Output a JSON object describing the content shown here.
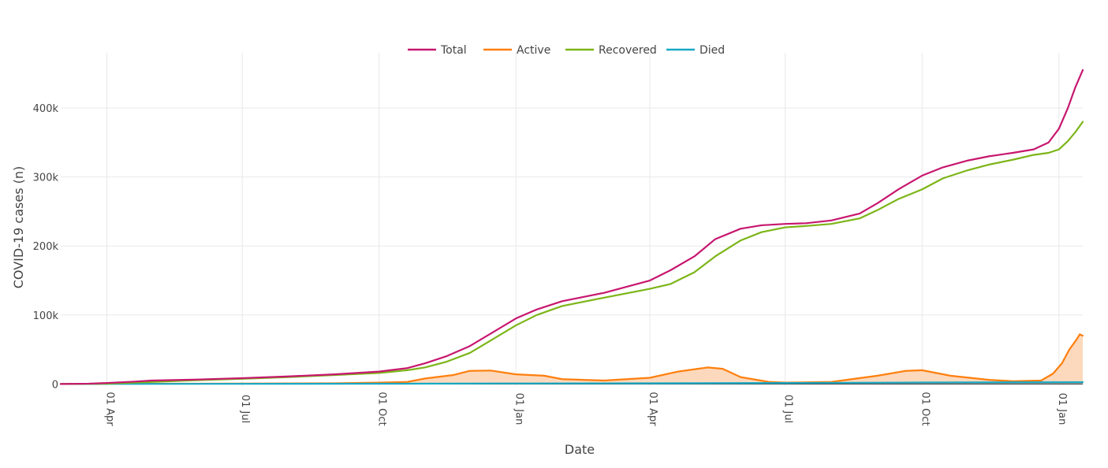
{
  "chart_data": {
    "type": "line",
    "title": "",
    "xlabel": "Date",
    "ylabel": "COVID-19 cases (n)",
    "x_ticks": [
      {
        "label": "01 Apr",
        "date": "2020-04-01"
      },
      {
        "label": "01 Jul",
        "date": "2020-07-01"
      },
      {
        "label": "01 Oct",
        "date": "2020-10-01"
      },
      {
        "label": "01 Jan",
        "date": "2021-01-01"
      },
      {
        "label": "01 Apr",
        "date": "2021-04-01"
      },
      {
        "label": "01 Jul",
        "date": "2021-07-01"
      },
      {
        "label": "01 Oct",
        "date": "2021-10-01"
      },
      {
        "label": "01 Jan",
        "date": "2022-01-01"
      }
    ],
    "y_ticks": [
      {
        "label": "0",
        "value": 0
      },
      {
        "label": "100k",
        "value": 100000
      },
      {
        "label": "200k",
        "value": 200000
      },
      {
        "label": "300k",
        "value": 300000
      },
      {
        "label": "400k",
        "value": 400000
      }
    ],
    "xlim": [
      "2020-03-01",
      "2022-01-17"
    ],
    "ylim": [
      -3000,
      480000
    ],
    "grid": true,
    "legend_position": "top-center",
    "series": [
      {
        "name": "Total",
        "color": "#c7176f",
        "fill": false,
        "points": [
          [
            "2020-03-01",
            0
          ],
          [
            "2020-03-20",
            500
          ],
          [
            "2020-04-01",
            1500
          ],
          [
            "2020-04-20",
            3500
          ],
          [
            "2020-05-01",
            5000
          ],
          [
            "2020-06-01",
            6500
          ],
          [
            "2020-07-01",
            8500
          ],
          [
            "2020-08-01",
            11000
          ],
          [
            "2020-09-01",
            14000
          ],
          [
            "2020-10-01",
            18000
          ],
          [
            "2020-10-20",
            23000
          ],
          [
            "2020-11-01",
            30000
          ],
          [
            "2020-11-15",
            40000
          ],
          [
            "2020-12-01",
            55000
          ],
          [
            "2020-12-15",
            73000
          ],
          [
            "2021-01-01",
            95000
          ],
          [
            "2021-01-15",
            108000
          ],
          [
            "2021-02-01",
            120000
          ],
          [
            "2021-03-01",
            132000
          ],
          [
            "2021-04-01",
            150000
          ],
          [
            "2021-04-15",
            165000
          ],
          [
            "2021-05-01",
            185000
          ],
          [
            "2021-05-15",
            210000
          ],
          [
            "2021-06-01",
            225000
          ],
          [
            "2021-06-15",
            230000
          ],
          [
            "2021-07-01",
            232000
          ],
          [
            "2021-07-15",
            233000
          ],
          [
            "2021-08-01",
            237000
          ],
          [
            "2021-08-20",
            247000
          ],
          [
            "2021-09-01",
            262000
          ],
          [
            "2021-09-15",
            282000
          ],
          [
            "2021-10-01",
            302000
          ],
          [
            "2021-10-15",
            314000
          ],
          [
            "2021-11-01",
            324000
          ],
          [
            "2021-11-15",
            330000
          ],
          [
            "2021-12-01",
            335000
          ],
          [
            "2021-12-15",
            340000
          ],
          [
            "2021-12-25",
            350000
          ],
          [
            "2022-01-01",
            370000
          ],
          [
            "2022-01-07",
            400000
          ],
          [
            "2022-01-12",
            430000
          ],
          [
            "2022-01-17",
            455000
          ]
        ]
      },
      {
        "name": "Active",
        "color": "#ff7f0e",
        "fill": true,
        "fill_color": "#fcd9bd",
        "points": [
          [
            "2020-03-01",
            0
          ],
          [
            "2020-04-01",
            500
          ],
          [
            "2020-06-01",
            500
          ],
          [
            "2020-09-01",
            1000
          ],
          [
            "2020-10-01",
            2000
          ],
          [
            "2020-10-20",
            3000
          ],
          [
            "2020-11-01",
            8000
          ],
          [
            "2020-11-20",
            13000
          ],
          [
            "2020-12-01",
            19000
          ],
          [
            "2020-12-15",
            19500
          ],
          [
            "2021-01-01",
            14000
          ],
          [
            "2021-01-20",
            12000
          ],
          [
            "2021-02-01",
            7000
          ],
          [
            "2021-03-01",
            5000
          ],
          [
            "2021-04-01",
            9000
          ],
          [
            "2021-04-20",
            18000
          ],
          [
            "2021-05-10",
            24000
          ],
          [
            "2021-05-20",
            22000
          ],
          [
            "2021-06-01",
            10000
          ],
          [
            "2021-06-20",
            3000
          ],
          [
            "2021-07-01",
            2000
          ],
          [
            "2021-08-01",
            3000
          ],
          [
            "2021-09-01",
            12000
          ],
          [
            "2021-09-20",
            19000
          ],
          [
            "2021-10-01",
            20000
          ],
          [
            "2021-10-20",
            12000
          ],
          [
            "2021-11-15",
            6000
          ],
          [
            "2021-12-01",
            4000
          ],
          [
            "2021-12-20",
            5000
          ],
          [
            "2021-12-28",
            15000
          ],
          [
            "2022-01-03",
            30000
          ],
          [
            "2022-01-08",
            50000
          ],
          [
            "2022-01-13",
            65000
          ],
          [
            "2022-01-15",
            72000
          ],
          [
            "2022-01-17",
            70000
          ]
        ]
      },
      {
        "name": "Recovered",
        "color": "#7cb518",
        "fill": false,
        "points": [
          [
            "2020-03-01",
            0
          ],
          [
            "2020-04-01",
            500
          ],
          [
            "2020-05-01",
            3000
          ],
          [
            "2020-06-01",
            5500
          ],
          [
            "2020-07-01",
            7500
          ],
          [
            "2020-08-01",
            10000
          ],
          [
            "2020-09-01",
            13000
          ],
          [
            "2020-10-01",
            16000
          ],
          [
            "2020-10-20",
            20000
          ],
          [
            "2020-11-01",
            24000
          ],
          [
            "2020-11-15",
            32000
          ],
          [
            "2020-12-01",
            45000
          ],
          [
            "2020-12-15",
            63000
          ],
          [
            "2021-01-01",
            85000
          ],
          [
            "2021-01-15",
            100000
          ],
          [
            "2021-02-01",
            113000
          ],
          [
            "2021-03-01",
            125000
          ],
          [
            "2021-04-01",
            138000
          ],
          [
            "2021-04-15",
            145000
          ],
          [
            "2021-05-01",
            162000
          ],
          [
            "2021-05-15",
            185000
          ],
          [
            "2021-06-01",
            208000
          ],
          [
            "2021-06-15",
            220000
          ],
          [
            "2021-07-01",
            227000
          ],
          [
            "2021-07-15",
            229000
          ],
          [
            "2021-08-01",
            232000
          ],
          [
            "2021-08-20",
            240000
          ],
          [
            "2021-09-01",
            252000
          ],
          [
            "2021-09-15",
            268000
          ],
          [
            "2021-10-01",
            282000
          ],
          [
            "2021-10-15",
            298000
          ],
          [
            "2021-11-01",
            310000
          ],
          [
            "2021-11-15",
            318000
          ],
          [
            "2021-12-01",
            325000
          ],
          [
            "2021-12-15",
            332000
          ],
          [
            "2021-12-25",
            335000
          ],
          [
            "2022-01-01",
            340000
          ],
          [
            "2022-01-07",
            352000
          ],
          [
            "2022-01-12",
            365000
          ],
          [
            "2022-01-17",
            380000
          ]
        ]
      },
      {
        "name": "Died",
        "color": "#17a9c6",
        "fill": false,
        "points": [
          [
            "2020-03-01",
            0
          ],
          [
            "2020-06-01",
            200
          ],
          [
            "2020-10-01",
            400
          ],
          [
            "2021-01-01",
            800
          ],
          [
            "2021-04-01",
            1000
          ],
          [
            "2021-07-01",
            1400
          ],
          [
            "2021-10-01",
            2200
          ],
          [
            "2022-01-17",
            2600
          ]
        ]
      }
    ]
  }
}
